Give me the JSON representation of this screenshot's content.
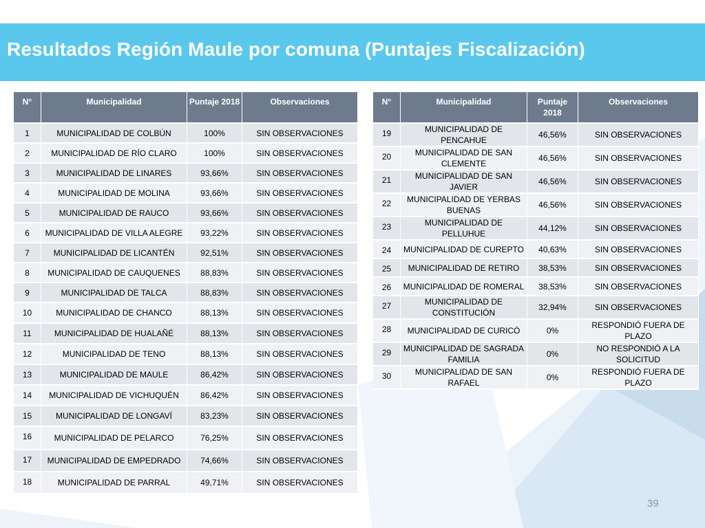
{
  "slide": {
    "title": "Resultados Región Maule por comuna (Puntajes Fiscalización)",
    "page_number": "39",
    "colors": {
      "title_band": "#5ac8ec",
      "header": "#6d7b8d",
      "row_odd": "#e2e5ea",
      "row_even": "#eff1f4"
    }
  },
  "headers": {
    "num": "N°",
    "municipality": "Municipalidad",
    "score": "Puntaje 2018",
    "observations": "Observaciones"
  },
  "left_table": {
    "rows": [
      {
        "n": "1",
        "municipalidad": "MUNICIPALIDAD DE COLBÚN",
        "puntaje": "100%",
        "observaciones": "SIN OBSERVACIONES"
      },
      {
        "n": "2",
        "municipalidad": "MUNICIPALIDAD DE RÍO CLARO",
        "puntaje": "100%",
        "observaciones": "SIN OBSERVACIONES"
      },
      {
        "n": "3",
        "municipalidad": "MUNICIPALIDAD DE LINARES",
        "puntaje": "93,66%",
        "observaciones": "SIN OBSERVACIONES"
      },
      {
        "n": "4",
        "municipalidad": "MUNICIPALIDAD DE MOLINA",
        "puntaje": "93,66%",
        "observaciones": "SIN OBSERVACIONES"
      },
      {
        "n": "5",
        "municipalidad": "MUNICIPALIDAD DE RAUCO",
        "puntaje": "93,66%",
        "observaciones": "SIN OBSERVACIONES"
      },
      {
        "n": "6",
        "municipalidad": "MUNICIPALIDAD DE VILLA ALEGRE",
        "puntaje": "93,22%",
        "observaciones": "SIN OBSERVACIONES"
      },
      {
        "n": "7",
        "municipalidad": "MUNICIPALIDAD DE LICANTÉN",
        "puntaje": "92,51%",
        "observaciones": "SIN OBSERVACIONES"
      },
      {
        "n": "8",
        "municipalidad": "MUNICIPALIDAD DE CAUQUENES",
        "puntaje": "88,83%",
        "observaciones": "SIN OBSERVACIONES"
      },
      {
        "n": "9",
        "municipalidad": "MUNICIPALIDAD DE TALCA",
        "puntaje": "88,83%",
        "observaciones": "SIN OBSERVACIONES"
      },
      {
        "n": "10",
        "municipalidad": "MUNICIPALIDAD DE CHANCO",
        "puntaje": "88,13%",
        "observaciones": "SIN OBSERVACIONES"
      },
      {
        "n": "11",
        "municipalidad": "MUNICIPALIDAD DE HUALAÑÉ",
        "puntaje": "88,13%",
        "observaciones": "SIN OBSERVACIONES"
      },
      {
        "n": "12",
        "municipalidad": "MUNICIPALIDAD DE TENO",
        "puntaje": "88,13%",
        "observaciones": "SIN OBSERVACIONES"
      },
      {
        "n": "13",
        "municipalidad": "MUNICIPALIDAD DE MAULE",
        "puntaje": "86,42%",
        "observaciones": "SIN OBSERVACIONES"
      },
      {
        "n": "14",
        "municipalidad": "MUNICIPALIDAD DE VICHUQUÉN",
        "puntaje": "86,42%",
        "observaciones": "SIN OBSERVACIONES"
      },
      {
        "n": "15",
        "municipalidad": "MUNICIPALIDAD DE LONGAVÍ",
        "puntaje": "83,23%",
        "observaciones": "SIN OBSERVACIONES"
      },
      {
        "n": "16",
        "municipalidad": "MUNICIPALIDAD DE PELARCO",
        "puntaje": "76,25%",
        "observaciones": "SIN OBSERVACIONES"
      },
      {
        "n": "17",
        "municipalidad": "MUNICIPALIDAD DE EMPEDRADO",
        "puntaje": "74,66%",
        "observaciones": "SIN OBSERVACIONES"
      },
      {
        "n": "18",
        "municipalidad": "MUNICIPALIDAD DE PARRAL",
        "puntaje": "49,71%",
        "observaciones": "SIN OBSERVACIONES"
      }
    ]
  },
  "right_table": {
    "rows": [
      {
        "n": "19",
        "municipalidad": "MUNICIPALIDAD DE PENCAHUE",
        "puntaje": "46,56%",
        "observaciones": "SIN OBSERVACIONES"
      },
      {
        "n": "20",
        "municipalidad": "MUNICIPALIDAD DE SAN CLEMENTE",
        "puntaje": "46,56%",
        "observaciones": "SIN OBSERVACIONES"
      },
      {
        "n": "21",
        "municipalidad": "MUNICIPALIDAD DE SAN JAVIER",
        "puntaje": "46,56%",
        "observaciones": "SIN OBSERVACIONES"
      },
      {
        "n": "22",
        "municipalidad": "MUNICIPALIDAD DE YERBAS BUENAS",
        "puntaje": "46,56%",
        "observaciones": "SIN OBSERVACIONES"
      },
      {
        "n": "23",
        "municipalidad": "MUNICIPALIDAD DE PELLUHUE",
        "puntaje": "44,12%",
        "observaciones": "SIN OBSERVACIONES"
      },
      {
        "n": "24",
        "municipalidad": "MUNICIPALIDAD DE CUREPTO",
        "puntaje": "40,63%",
        "observaciones": "SIN OBSERVACIONES"
      },
      {
        "n": "25",
        "municipalidad": "MUNICIPALIDAD DE RETIRO",
        "puntaje": "38,53%",
        "observaciones": "SIN OBSERVACIONES"
      },
      {
        "n": "26",
        "municipalidad": "MUNICIPALIDAD DE ROMERAL",
        "puntaje": "38,53%",
        "observaciones": "SIN OBSERVACIONES"
      },
      {
        "n": "27",
        "municipalidad": "MUNICIPALIDAD DE CONSTITUCIÓN",
        "puntaje": "32,94%",
        "observaciones": "SIN OBSERVACIONES"
      },
      {
        "n": "28",
        "municipalidad": "MUNICIPALIDAD DE CURICÓ",
        "puntaje": "0%",
        "observaciones": "RESPONDIÓ FUERA DE PLAZO"
      },
      {
        "n": "29",
        "municipalidad": "MUNICIPALIDAD DE SAGRADA FAMILIA",
        "puntaje": "0%",
        "observaciones": "NO RESPONDIÓ A LA SOLICITUD"
      },
      {
        "n": "30",
        "municipalidad": "MUNICIPALIDAD DE SAN RAFAEL",
        "puntaje": "0%",
        "observaciones": "RESPONDIÓ FUERA DE PLAZO"
      }
    ]
  }
}
